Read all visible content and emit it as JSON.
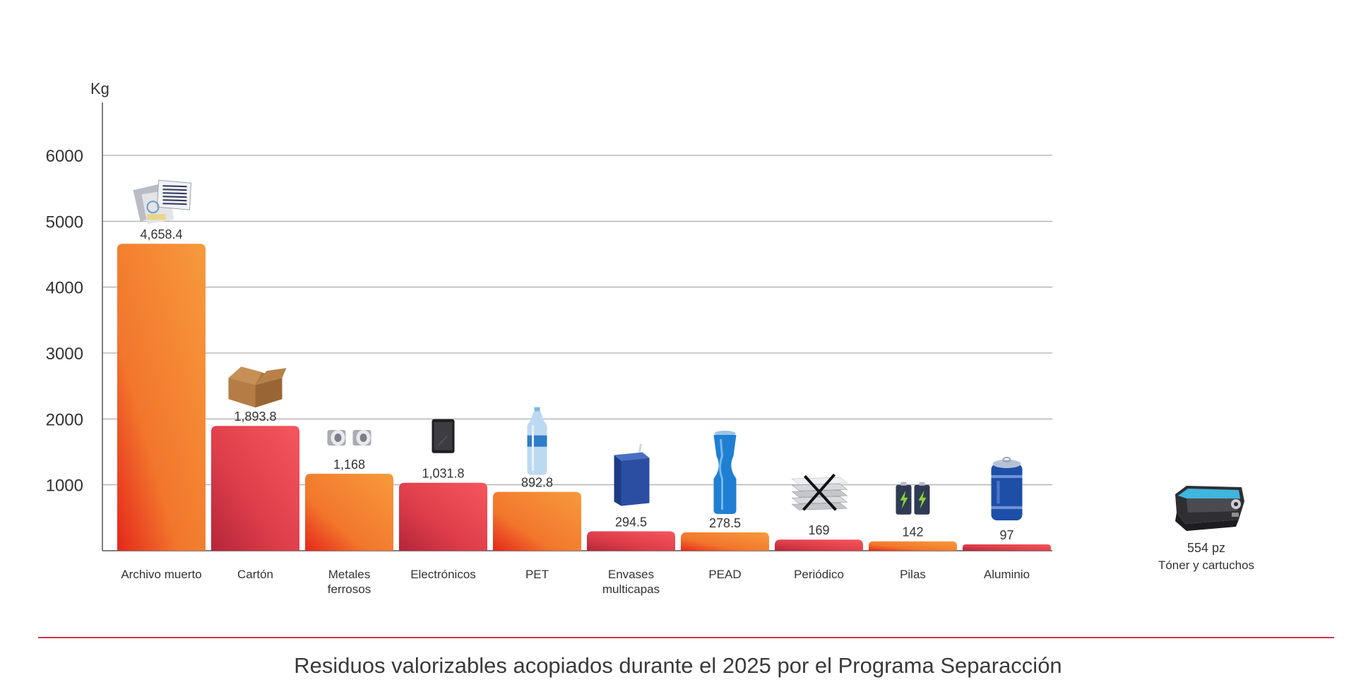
{
  "chart_data": {
    "type": "bar",
    "ylabel": "Kg",
    "ylim": [
      0,
      6000
    ],
    "yticks": [
      "1000",
      "2000",
      "3000",
      "4000",
      "5000",
      "6000"
    ],
    "ytick_values": [
      1000,
      2000,
      3000,
      4000,
      5000,
      6000
    ],
    "grid": true,
    "categories": [
      [
        "Archivo muerto"
      ],
      [
        "Cartón"
      ],
      [
        "Metales",
        "ferrosos"
      ],
      [
        "Electrónicos"
      ],
      [
        "PET"
      ],
      [
        "Envases",
        "multicapas"
      ],
      [
        "PEAD"
      ],
      [
        "Periódico"
      ],
      [
        "Pilas"
      ],
      [
        "Aluminio"
      ]
    ],
    "values": [
      4658.4,
      1893.8,
      1168,
      1031.8,
      892.8,
      294.5,
      278.5,
      169,
      142,
      97
    ],
    "value_labels": [
      "4,658.4",
      "1,893.8",
      "1,168",
      "1,031.8",
      "892.8",
      "294.5",
      "278.5",
      "169",
      "142",
      "97"
    ],
    "icons": [
      "paper-documents-icon",
      "cardboard-box-icon",
      "metal-pipes-icon",
      "tablet-icon",
      "pet-bottle-icon",
      "tetra-pack-icon",
      "hdpe-bottle-icon",
      "newspaper-bundle-icon",
      "batteries-icon",
      "aluminum-can-icon"
    ],
    "colors": {
      "orange_top": "#f6913a",
      "orange_bottom": "#e8301c",
      "red_top": "#f2545a",
      "red_bottom": "#b9283a",
      "grid": "#9a9a9a",
      "axis": "#555555"
    },
    "bar_palette": [
      "orange",
      "red",
      "orange",
      "red",
      "orange",
      "red",
      "orange",
      "red",
      "orange",
      "red"
    ],
    "extra": {
      "value_label": "554 pz",
      "label": "Tóner y cartuchos",
      "icon": "toner-cartridge-icon"
    },
    "title": "Residuos valorizables acopiados durante el 2025 por el Programa Separacción"
  }
}
